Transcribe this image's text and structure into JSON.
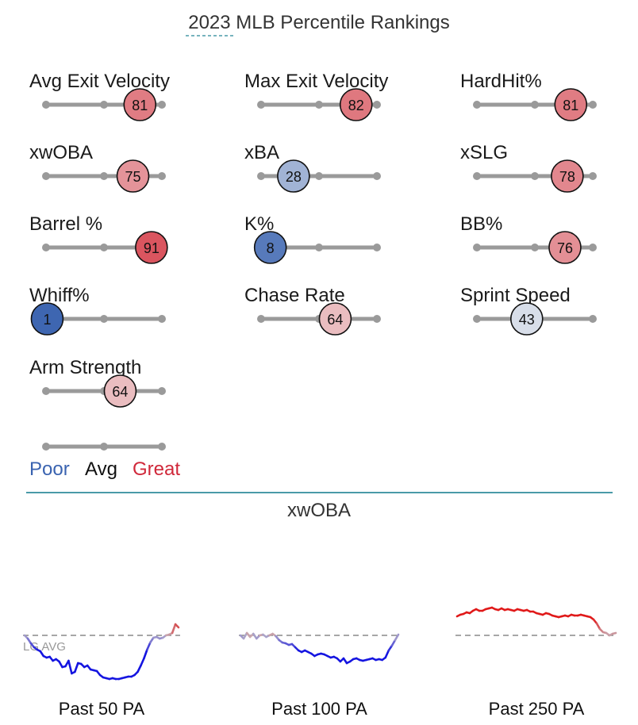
{
  "title": "2023 MLB Percentile Rankings",
  "colors": {
    "poor": "#3a63b0",
    "avg": "#111111",
    "great": "#d0283a",
    "track": "#9a9a9a",
    "divider": "#4a9aa8",
    "title_underline": "#4a9aa8"
  },
  "metrics": [
    {
      "label": "Avg Exit Velocity",
      "percentile": 81
    },
    {
      "label": "Max Exit Velocity",
      "percentile": 82
    },
    {
      "label": "HardHit%",
      "percentile": 81
    },
    {
      "label": "xwOBA",
      "percentile": 75
    },
    {
      "label": "xBA",
      "percentile": 28
    },
    {
      "label": "xSLG",
      "percentile": 78
    },
    {
      "label": "Barrel %",
      "percentile": 91
    },
    {
      "label": "K%",
      "percentile": 8
    },
    {
      "label": "BB%",
      "percentile": 76
    },
    {
      "label": "Whiff%",
      "percentile": 1
    },
    {
      "label": "Chase Rate",
      "percentile": 64
    },
    {
      "label": "Sprint Speed",
      "percentile": 43
    },
    {
      "label": "Arm Strength",
      "percentile": 64
    }
  ],
  "legend": {
    "poor": "Poor",
    "avg": "Avg",
    "great": "Great"
  },
  "rolling": {
    "title": "xwOBA",
    "lg_avg_label": "LG AVG"
  },
  "chart_data": [
    {
      "type": "line",
      "title": "Past 50 PA",
      "y_reference": "LG AVG",
      "series": [
        {
          "values": [
            0.0,
            -0.4,
            -1.0,
            -1.5,
            -1.8,
            -2.0,
            -2.6,
            -2.8,
            -2.7,
            -3.2,
            -3.0,
            -3.3,
            -4.0,
            -3.9,
            -3.2,
            -4.8,
            -4.6,
            -3.5,
            -3.6,
            -4.0,
            -3.8,
            -4.3,
            -4.4,
            -4.5,
            -5.0,
            -5.3,
            -5.4,
            -5.5,
            -5.4,
            -5.5,
            -5.5,
            -5.4,
            -5.3,
            -5.2,
            -5.2,
            -5.0,
            -4.6,
            -3.8,
            -2.9,
            -1.8,
            -0.9,
            -0.3,
            -0.2,
            -0.4,
            -0.3,
            0.0,
            0.1,
            0.3,
            1.4,
            1.0
          ]
        }
      ]
    },
    {
      "type": "line",
      "title": "Past 100 PA",
      "y_reference": "",
      "series": [
        {
          "values": [
            0.0,
            -0.4,
            0.3,
            -0.2,
            0.2,
            -0.4,
            0.0,
            0.1,
            -0.2,
            0.0,
            0.2,
            -0.1,
            -0.6,
            -0.9,
            -1.0,
            -1.2,
            -1.1,
            -1.5,
            -1.9,
            -2.1,
            -1.9,
            -2.1,
            -2.3,
            -2.6,
            -2.4,
            -2.3,
            -2.4,
            -2.6,
            -2.8,
            -2.7,
            -2.9,
            -3.3,
            -2.9,
            -3.5,
            -3.3,
            -3.0,
            -2.9,
            -3.1,
            -3.2,
            -3.1,
            -3.0,
            -2.9,
            -3.1,
            -3.0,
            -3.1,
            -2.8,
            -1.9,
            -1.3,
            -0.6,
            0.1
          ]
        }
      ]
    },
    {
      "type": "line",
      "title": "Past 250 PA",
      "y_reference": "",
      "series": [
        {
          "values": [
            2.4,
            2.6,
            2.7,
            2.9,
            2.8,
            3.1,
            3.3,
            3.1,
            3.1,
            3.3,
            3.4,
            3.5,
            3.3,
            3.2,
            3.4,
            3.2,
            3.3,
            3.2,
            3.1,
            3.3,
            3.2,
            3.1,
            3.2,
            3.0,
            3.0,
            2.8,
            2.7,
            2.6,
            2.8,
            2.7,
            2.5,
            2.4,
            2.3,
            2.4,
            2.5,
            2.4,
            2.6,
            2.5,
            2.5,
            2.6,
            2.5,
            2.4,
            2.3,
            2.0,
            1.5,
            0.8,
            0.4,
            0.3,
            0.0,
            0.2,
            0.3
          ]
        }
      ]
    }
  ]
}
